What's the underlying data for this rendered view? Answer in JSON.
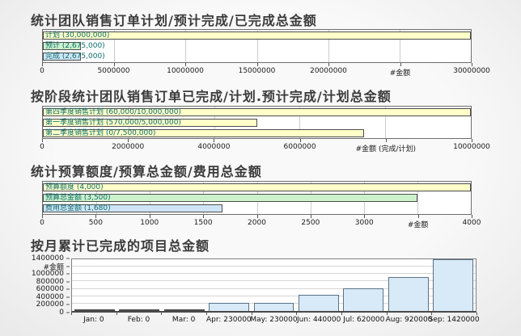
{
  "page": {
    "background": "#f2f2f2",
    "bar_label_color": "#0c6b6b",
    "colors": {
      "yellow": "#feffc9",
      "green": "#ccf2cc",
      "blue": "#cfe5f6",
      "vbar_fill": "#d8eaf8",
      "vbar_border": "#5b7285",
      "zero_bar": "#4a4a4a"
    }
  },
  "chart_data": [
    {
      "type": "bar",
      "orientation": "horizontal",
      "title": "统计团队销售订单计划/预计完成/已完成总金额",
      "categories": [
        "计划",
        "预计",
        "完成"
      ],
      "values": [
        30000000,
        2675000,
        2675000
      ],
      "bar_labels": [
        "计划 (30,000,000)",
        "预计 (2,675,000)",
        "完成 (2,675,000)"
      ],
      "bar_colors": [
        "#feffc9",
        "#ccf2cc",
        "#cfe5f6"
      ],
      "xlim": [
        0,
        30000000
      ],
      "xlabel": "#金额",
      "x_ticks": [
        {
          "value": 0,
          "label": "0"
        },
        {
          "value": 5000000,
          "label": "5000000"
        },
        {
          "value": 10000000,
          "label": "10000000"
        },
        {
          "value": 15000000,
          "label": "15000000"
        },
        {
          "value": 20000000,
          "label": "20000000"
        },
        {
          "value": 25000000,
          "label": "#金额"
        },
        {
          "value": 30000000,
          "label": "30000000"
        }
      ]
    },
    {
      "type": "bar",
      "orientation": "horizontal",
      "title": "按阶段统计团队销售订单已完成/计划.预计完成/计划总金额",
      "categories": [
        "第四季度销售计划",
        "第一季度销售计划",
        "第二季度销售计划"
      ],
      "values": [
        10000000,
        5000000,
        7500000
      ],
      "bar_labels": [
        "第四季度销售计划 (60,000/10,000,000)",
        "第一季度销售计划 (570,000/5,000,000)",
        "第二季度销售计划 (0/7,500,000)"
      ],
      "bar_colors": [
        "#feffc9",
        "#feffc9",
        "#feffc9"
      ],
      "xlim": [
        0,
        10000000
      ],
      "xlabel": "#金额 (完成/计划)",
      "x_ticks": [
        {
          "value": 0,
          "label": "0"
        },
        {
          "value": 2000000,
          "label": "2000000"
        },
        {
          "value": 4000000,
          "label": "4000000"
        },
        {
          "value": 6000000,
          "label": "6000000"
        },
        {
          "value": 8000000,
          "label": "#金额 (完成/计划)"
        },
        {
          "value": 10000000,
          "label": "10000000"
        }
      ]
    },
    {
      "type": "bar",
      "orientation": "horizontal",
      "title": "统计预算额度/预算总金额/费用总金额",
      "categories": [
        "预算额度",
        "预算总金额",
        "费用总金额"
      ],
      "values": [
        4000,
        3500,
        1680
      ],
      "bar_labels": [
        "预算额度 (4,000)",
        "预算总金额 (3,500)",
        "费用总金额 (1,680)"
      ],
      "bar_colors": [
        "#feffc9",
        "#ccf2cc",
        "#cfe5f6"
      ],
      "xlim": [
        0,
        4000
      ],
      "xlabel": "#金额",
      "x_ticks": [
        {
          "value": 0,
          "label": "0"
        },
        {
          "value": 500,
          "label": "500"
        },
        {
          "value": 1000,
          "label": "1000"
        },
        {
          "value": 1500,
          "label": "1500"
        },
        {
          "value": 2000,
          "label": "2000"
        },
        {
          "value": 2500,
          "label": "2500"
        },
        {
          "value": 3000,
          "label": "3000"
        },
        {
          "value": 3500,
          "label": "#金额"
        },
        {
          "value": 4000,
          "label": "4000"
        }
      ]
    },
    {
      "type": "bar",
      "orientation": "vertical",
      "title": "按月累计已完成的项目总金额",
      "categories": [
        "Jan",
        "Feb",
        "Mar",
        "Apr",
        "May",
        "Jun",
        "Jul",
        "Aug",
        "Sep"
      ],
      "values": [
        0,
        0,
        0,
        230000,
        230000,
        440000,
        620000,
        920000,
        1420000
      ],
      "x_labels": [
        "Jan: 0",
        "Feb: 0",
        "Mar: 0",
        "Apr: 230000",
        "May: 230000",
        "Jun: 440000",
        "Jul: 620000",
        "Aug: 920000",
        "Sep: 1420000"
      ],
      "ylim": [
        0,
        1400000
      ],
      "ylabel": "#金额",
      "y_ticks": [
        {
          "value": 0,
          "label": "0"
        },
        {
          "value": 200000,
          "label": "200000"
        },
        {
          "value": 400000,
          "label": "400000"
        },
        {
          "value": 600000,
          "label": "600000"
        },
        {
          "value": 800000,
          "label": "800000"
        },
        {
          "value": 1000000,
          "label": "1000000"
        },
        {
          "value": 1200000,
          "label": "#金额"
        },
        {
          "value": 1400000,
          "label": "1400000"
        }
      ]
    }
  ]
}
